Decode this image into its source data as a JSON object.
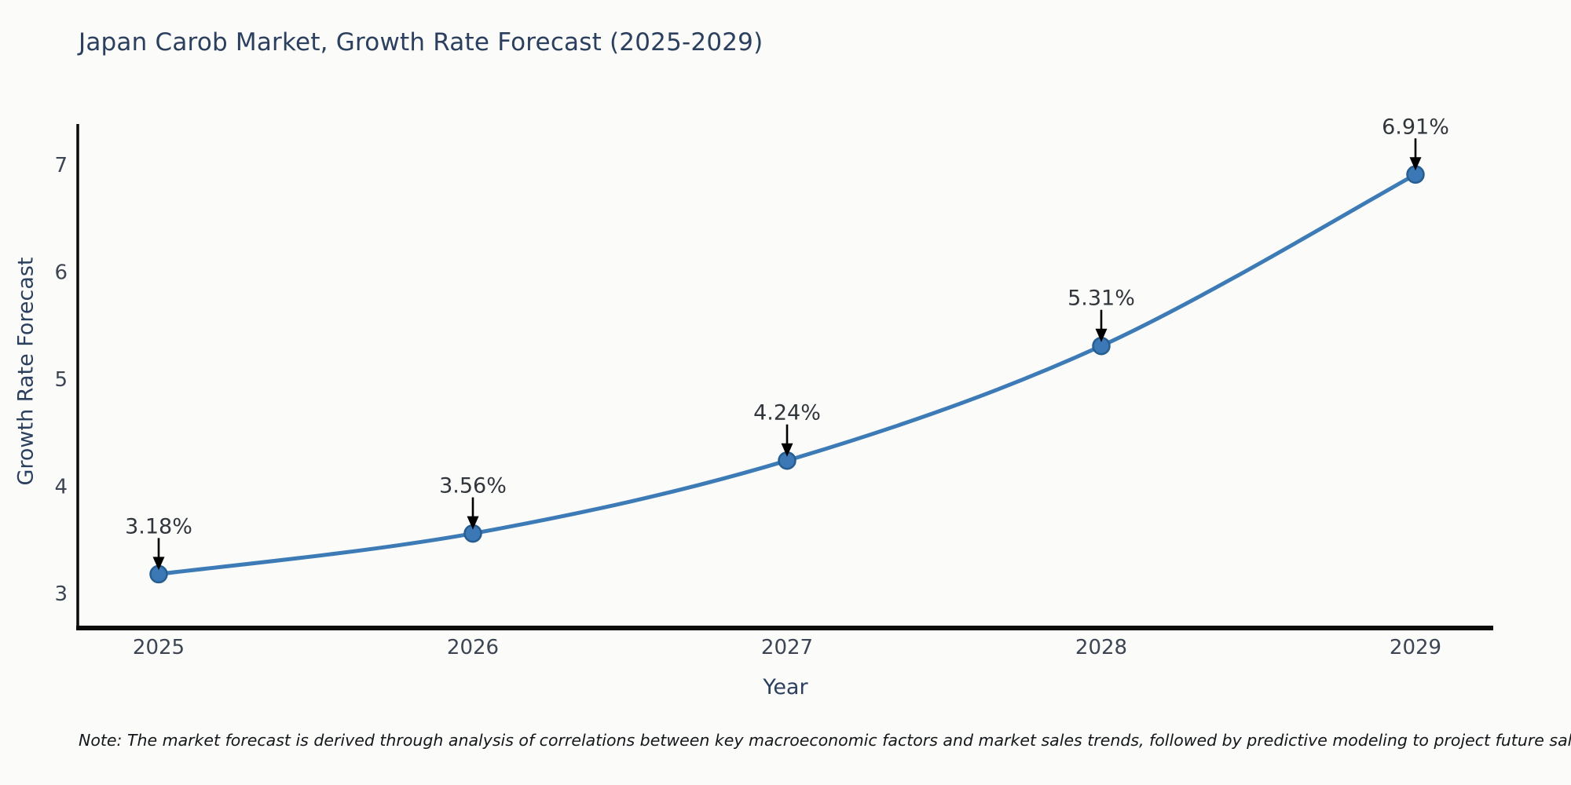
{
  "note": "Note: The market forecast is derived through analysis of correlations between key macroeconomic factors and market sales trends, followed by predictive modeling to project future sales.",
  "chart_data": {
    "type": "line",
    "title": "Japan Carob Market, Growth Rate Forecast (2025-2029)",
    "xlabel": "Year",
    "ylabel": "Growth Rate Forecast",
    "x": [
      "2025",
      "2026",
      "2027",
      "2028",
      "2029"
    ],
    "series": [
      {
        "name": "Growth Rate Forecast",
        "values": [
          3.18,
          3.56,
          4.24,
          5.31,
          6.91
        ]
      }
    ],
    "point_labels": [
      "3.18%",
      "3.56%",
      "4.24%",
      "5.31%",
      "6.91%"
    ],
    "yticks": [
      3,
      4,
      5,
      6,
      7
    ],
    "ylim": [
      2.66,
      7.37
    ],
    "grid": false,
    "legend_position": "none",
    "colors": {
      "line": "#3d7bb7",
      "marker_fill": "#3c78b5",
      "marker_edge": "#265e91",
      "arrow": "#000000",
      "spine": "#0b0b0b",
      "title_text": "#2b3f5e",
      "axis_label_text": "#2b3f5e",
      "tick_text": "#3d4553",
      "annotation_text": "#31363c",
      "background": "#fbfbf9"
    }
  }
}
